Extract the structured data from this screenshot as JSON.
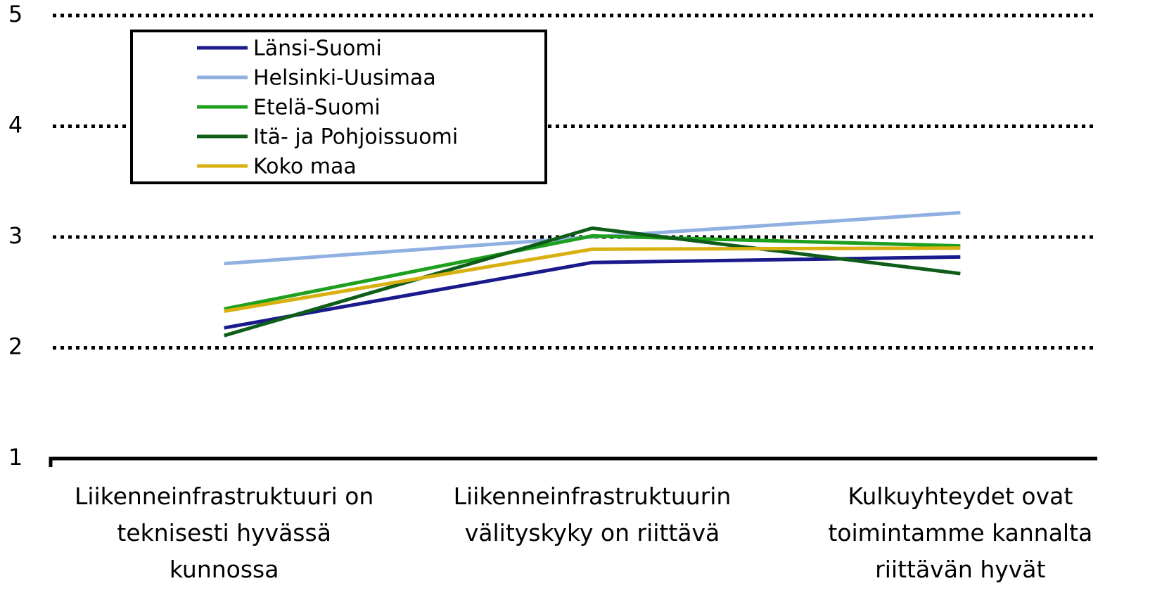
{
  "chart_data": {
    "type": "line",
    "categories": [
      "Liikenneinfrastruktuuri on\nteknisesti hyvässä\nkunnossa",
      "Liikenneinfrastruktuurin\nvälityskyky on riittävä",
      "Kulkuyhteydet ovat\ntoimintamme kannalta\nriittävän hyvät"
    ],
    "series": [
      {
        "name": "Länsi-Suomi",
        "color": "#1a1a8c",
        "values": [
          2.18,
          2.77,
          2.82
        ]
      },
      {
        "name": "Helsinki-Uusimaa",
        "color": "#8fb0e0",
        "values": [
          2.76,
          3.0,
          3.22
        ]
      },
      {
        "name": "Etelä-Suomi",
        "color": "#1ea01e",
        "values": [
          2.35,
          3.01,
          2.92
        ]
      },
      {
        "name": "Itä- ja Pohjoissuomi",
        "color": "#0e5e1a",
        "values": [
          2.11,
          3.08,
          2.67
        ]
      },
      {
        "name": "Koko maa",
        "color": "#d8b010",
        "values": [
          2.33,
          2.89,
          2.9
        ]
      }
    ],
    "ylim": [
      1,
      5
    ],
    "yticks": [
      1,
      2,
      3,
      4,
      5
    ],
    "grid": true,
    "legend": "upper left"
  }
}
